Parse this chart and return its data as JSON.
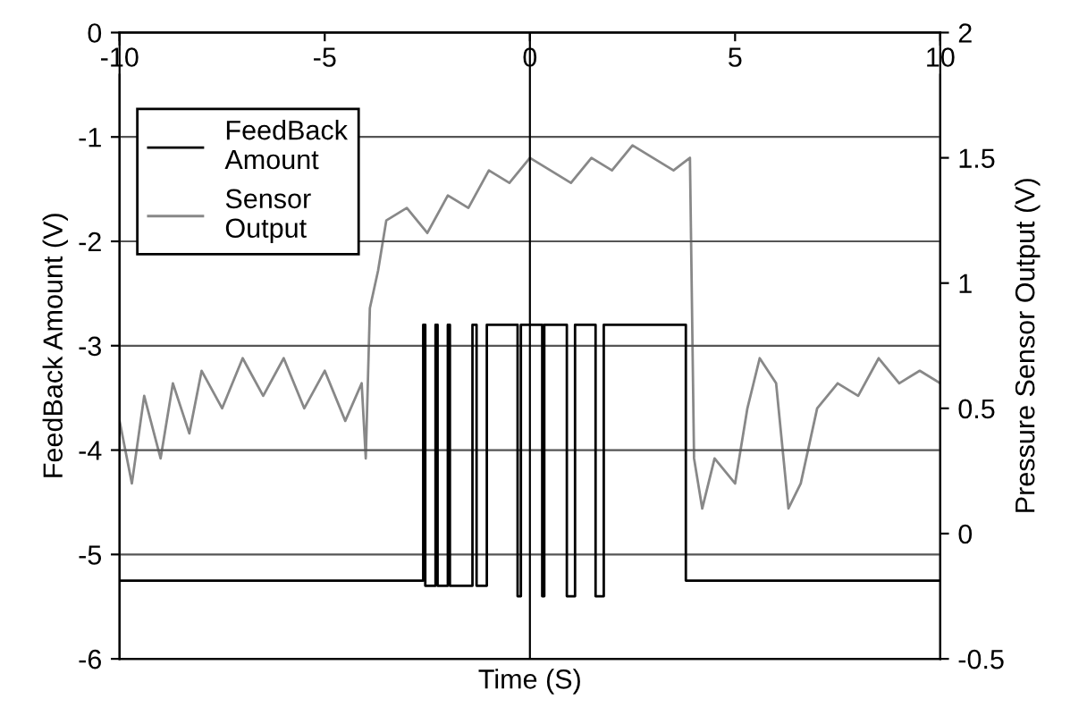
{
  "chart_data": {
    "type": "line",
    "xlabel": "Time (S)",
    "ylabel": "FeedBack Amount (V)",
    "y2label": "Pressure Sensor Output (V)",
    "xlim": [
      -10,
      10
    ],
    "xticks": [
      -10,
      -5,
      0,
      5,
      10
    ],
    "ylim": [
      -6,
      0
    ],
    "yticks": [
      0,
      -1,
      -2,
      -3,
      -4,
      -5,
      -6
    ],
    "y2lim": [
      -0.5,
      2
    ],
    "y2ticks": [
      -0.5,
      0,
      0.5,
      1,
      1.5,
      2
    ],
    "grid": "y",
    "legend": "top left",
    "ref_lines": [
      {
        "axis": "x",
        "value": 0,
        "color": "#000000"
      }
    ],
    "series": [
      {
        "name": "FeedBack\nAmount",
        "color": "#000000",
        "x": [
          -10,
          -2.6,
          -2.6,
          -2.55,
          -2.55,
          -2.3,
          -2.3,
          -2.25,
          -2.25,
          -2.0,
          -2.0,
          -1.95,
          -1.95,
          -1.4,
          -1.4,
          -1.3,
          -1.3,
          -1.05,
          -1.05,
          -0.3,
          -0.3,
          -0.22,
          -0.22,
          0.3,
          0.3,
          0.35,
          0.35,
          0.9,
          0.9,
          1.1,
          1.1,
          1.6,
          1.6,
          1.8,
          1.8,
          3.8,
          3.8,
          10
        ],
        "values": [
          -5.25,
          -5.25,
          -2.8,
          -2.8,
          -5.3,
          -5.3,
          -2.8,
          -2.8,
          -5.3,
          -5.3,
          -2.8,
          -2.8,
          -5.3,
          -5.3,
          -2.8,
          -2.8,
          -5.3,
          -5.3,
          -2.8,
          -2.8,
          -5.4,
          -5.4,
          -2.8,
          -2.8,
          -5.4,
          -5.4,
          -2.8,
          -2.8,
          -5.4,
          -5.4,
          -2.8,
          -2.8,
          -5.4,
          -5.4,
          -2.8,
          -2.8,
          -5.25,
          -5.25
        ]
      },
      {
        "name": "Sensor\nOutput",
        "color": "#888888",
        "type": "line",
        "axis": "y2",
        "x": [
          -10,
          -9.7,
          -9.4,
          -9,
          -8.7,
          -8.3,
          -8,
          -7.5,
          -7,
          -6.5,
          -6,
          -5.5,
          -5,
          -4.5,
          -4.1,
          -4.0,
          -3.9,
          -3.7,
          -3.5,
          -3,
          -2.5,
          -2,
          -1.5,
          -1,
          -0.5,
          0,
          0.5,
          1,
          1.5,
          2,
          2.5,
          3,
          3.5,
          3.9,
          4.0,
          4.2,
          4.5,
          5,
          5.3,
          5.6,
          6,
          6.3,
          6.6,
          7,
          7.5,
          8,
          8.5,
          9,
          9.5,
          10
        ],
        "values": [
          0.45,
          0.2,
          0.55,
          0.3,
          0.6,
          0.4,
          0.65,
          0.5,
          0.7,
          0.55,
          0.7,
          0.5,
          0.65,
          0.45,
          0.6,
          0.3,
          0.9,
          1.05,
          1.25,
          1.3,
          1.2,
          1.35,
          1.3,
          1.45,
          1.4,
          1.5,
          1.45,
          1.4,
          1.5,
          1.45,
          1.55,
          1.5,
          1.45,
          1.5,
          0.3,
          0.1,
          0.3,
          0.2,
          0.5,
          0.7,
          0.6,
          0.1,
          0.2,
          0.5,
          0.6,
          0.55,
          0.7,
          0.6,
          0.65,
          0.6
        ]
      }
    ]
  }
}
